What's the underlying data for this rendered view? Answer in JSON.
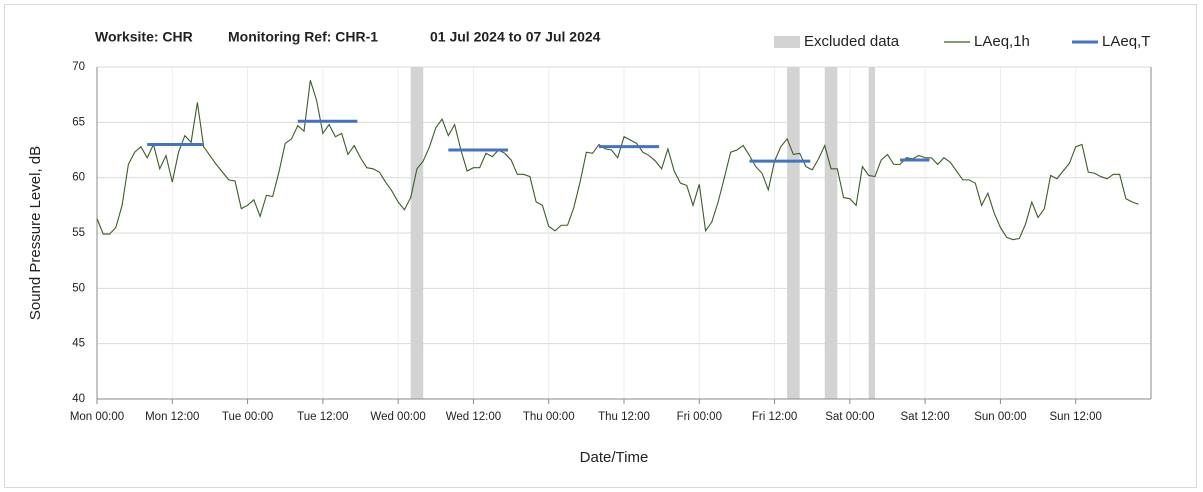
{
  "chart_data": {
    "type": "line",
    "title": [
      "Worksite: CHR",
      "Monitoring Ref: CHR-1",
      "01 Jul 2024 to 07 Jul 2024"
    ],
    "xlabel": "Date/Time",
    "ylabel": "Sound Pressure Level, dB",
    "xlim": [
      0,
      168
    ],
    "ylim": [
      40,
      70
    ],
    "xticks": [
      {
        "value": 0,
        "label": "Mon 00:00"
      },
      {
        "value": 12,
        "label": "Mon 12:00"
      },
      {
        "value": 24,
        "label": "Tue 00:00"
      },
      {
        "value": 36,
        "label": "Tue 12:00"
      },
      {
        "value": 48,
        "label": "Wed 00:00"
      },
      {
        "value": 60,
        "label": "Wed 12:00"
      },
      {
        "value": 72,
        "label": "Thu 00:00"
      },
      {
        "value": 84,
        "label": "Thu 12:00"
      },
      {
        "value": 96,
        "label": "Fri 00:00"
      },
      {
        "value": 108,
        "label": "Fri 12:00"
      },
      {
        "value": 120,
        "label": "Sat 00:00"
      },
      {
        "value": 132,
        "label": "Sat 12:00"
      },
      {
        "value": 144,
        "label": "Sun 00:00"
      },
      {
        "value": 156,
        "label": "Sun 12:00"
      }
    ],
    "yticks": [
      40,
      45,
      50,
      55,
      60,
      65,
      70
    ],
    "grid": true,
    "excluded": {
      "name": "Excluded data",
      "color": "#d3d3d3",
      "ranges": [
        [
          50,
          52
        ],
        [
          110,
          112
        ],
        [
          116,
          118
        ],
        [
          123,
          124
        ]
      ]
    },
    "series": [
      {
        "name": "LAeq,1h",
        "color": "#3b5e26",
        "x": [
          0,
          1,
          2,
          3,
          4,
          5,
          6,
          7,
          8,
          9,
          10,
          11,
          12,
          13,
          14,
          15,
          16,
          17,
          18,
          19,
          20,
          21,
          22,
          23,
          24,
          25,
          26,
          27,
          28,
          29,
          30,
          31,
          32,
          33,
          34,
          35,
          36,
          37,
          38,
          39,
          40,
          41,
          42,
          43,
          44,
          45,
          46,
          47,
          48,
          49,
          50,
          51,
          52,
          53,
          54,
          55,
          56,
          57,
          58,
          59,
          60,
          61,
          62,
          63,
          64,
          65,
          66,
          67,
          68,
          69,
          70,
          71,
          72,
          73,
          74,
          75,
          76,
          77,
          78,
          79,
          80,
          81,
          82,
          83,
          84,
          85,
          86,
          87,
          88,
          89,
          90,
          91,
          92,
          93,
          94,
          95,
          96,
          97,
          98,
          99,
          100,
          101,
          102,
          103,
          104,
          105,
          106,
          107,
          108,
          109,
          110,
          111,
          112,
          113,
          114,
          115,
          116,
          117,
          118,
          119,
          120,
          121,
          122,
          123,
          124,
          125,
          126,
          127,
          128,
          129,
          130,
          131,
          132,
          133,
          134,
          135,
          136,
          137,
          138,
          139,
          140,
          141,
          142,
          143,
          144,
          145,
          146,
          147,
          148,
          149,
          150,
          151,
          152,
          153,
          154,
          155,
          156,
          157,
          158,
          159,
          160,
          161,
          162,
          163,
          164,
          165,
          166
        ],
        "values": [
          56.3,
          54.9,
          54.9,
          55.5,
          57.5,
          61.2,
          62.3,
          62.8,
          61.8,
          63.0,
          60.8,
          62.0,
          59.6,
          62.3,
          63.8,
          63.2,
          66.8,
          62.8,
          62.0,
          61.2,
          60.5,
          59.8,
          59.7,
          57.2,
          57.5,
          58.0,
          56.5,
          58.4,
          58.3,
          60.5,
          63.1,
          63.5,
          64.7,
          64.2,
          68.8,
          67.0,
          64.0,
          64.8,
          63.7,
          64.0,
          62.1,
          62.9,
          61.8,
          60.9,
          60.8,
          60.5,
          59.6,
          58.8,
          57.8,
          57.1,
          58.2,
          60.8,
          61.5,
          62.8,
          64.5,
          65.3,
          63.8,
          64.8,
          62.5,
          60.6,
          60.9,
          60.9,
          62.2,
          61.9,
          62.5,
          62.2,
          61.6,
          60.3,
          60.3,
          60.1,
          57.8,
          57.5,
          55.6,
          55.2,
          55.7,
          55.7,
          57.3,
          59.6,
          62.3,
          62.2,
          63.0,
          62.6,
          62.5,
          61.8,
          63.7,
          63.4,
          63.1,
          62.3,
          62.0,
          61.5,
          60.8,
          62.6,
          60.6,
          59.5,
          59.3,
          57.5,
          59.4,
          55.2,
          56.0,
          57.8,
          60.0,
          62.3,
          62.5,
          62.9,
          62.0,
          61.0,
          60.4,
          58.9,
          61.5,
          62.8,
          63.5,
          62.1,
          62.2,
          61.0,
          60.7,
          61.7,
          62.9,
          60.8,
          60.8,
          58.2,
          58.1,
          57.5,
          61.0,
          60.2,
          60.1,
          61.6,
          62.1,
          61.2,
          61.2,
          61.8,
          61.7,
          62.0,
          61.8,
          61.8,
          61.2,
          61.8,
          61.4,
          60.6,
          59.8,
          59.8,
          59.5,
          57.5,
          58.6,
          56.8,
          55.5,
          54.6,
          54.4,
          54.5,
          55.8,
          57.8,
          56.4,
          57.2,
          60.2,
          59.9,
          60.6,
          61.3,
          62.8,
          63.0,
          60.5,
          60.4,
          60.1,
          59.9,
          60.3,
          60.3,
          58.1,
          57.8,
          57.6
        ]
      },
      {
        "name": "LAeq,T",
        "color": "#4472c4",
        "segments": [
          {
            "x": [
              8,
              17
            ],
            "value": 63.0
          },
          {
            "x": [
              32,
              41.5
            ],
            "value": 65.1
          },
          {
            "x": [
              56,
              65.5
            ],
            "value": 62.5
          },
          {
            "x": [
              80,
              89.6
            ],
            "value": 62.8
          },
          {
            "x": [
              104,
              113.7
            ],
            "value": 61.5
          },
          {
            "x": [
              128,
              132.7
            ],
            "value": 61.6
          }
        ]
      }
    ]
  }
}
